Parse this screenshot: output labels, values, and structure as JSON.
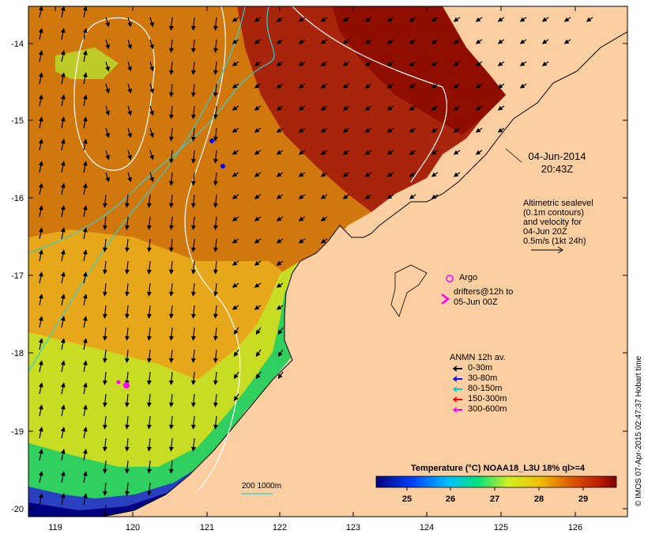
{
  "map": {
    "title_date": "04-Jun-2014",
    "title_time": "20:43Z",
    "altimetry_lines": [
      "Altimetric sealevel",
      "(0.1m contours)",
      "and velocity for",
      "04-Jun 20Z",
      "0.5m/s (1kt 24h)"
    ],
    "argo_label": "Argo",
    "drifters_lines": [
      "drifters@12h to",
      "05-Jun 00Z"
    ],
    "anmn_title": "ANMN 12h av.",
    "anmn_items": [
      {
        "label": "0-30m",
        "color": "#000000"
      },
      {
        "label": "30-80m",
        "color": "#0000ff"
      },
      {
        "label": "80-150m",
        "color": "#00cccc"
      },
      {
        "label": "150-300m",
        "color": "#ff0000"
      },
      {
        "label": "300-600m",
        "color": "#ff00ff"
      }
    ],
    "depth_label": "200  1000m",
    "credit": "© IMOS 07-Apr-2015 02:47:37 Hobart time",
    "colorbar": {
      "title": "Temperature (°C) NOAA18_L3U 18% ql>=4",
      "ticks": [
        "25",
        "26",
        "27",
        "28",
        "29"
      ]
    },
    "x_ticks": [
      "119",
      "120",
      "121",
      "122",
      "123",
      "124",
      "125",
      "126"
    ],
    "y_ticks": [
      "-14",
      "-15",
      "-16",
      "-17",
      "-18",
      "-19",
      "-20"
    ],
    "colors": {
      "land": "#fbcfa2",
      "sst_hot": "#9a1200",
      "sst_warm": "#c84a0a",
      "sst_mid": "#e6a020",
      "sst_cool": "#c8e020",
      "sst_cold": "#00d080",
      "sst_coldest": "#000080",
      "argo": "#ff00ff",
      "contour_cyan": "#30d0d0",
      "contour_white": "#ffffff"
    }
  }
}
